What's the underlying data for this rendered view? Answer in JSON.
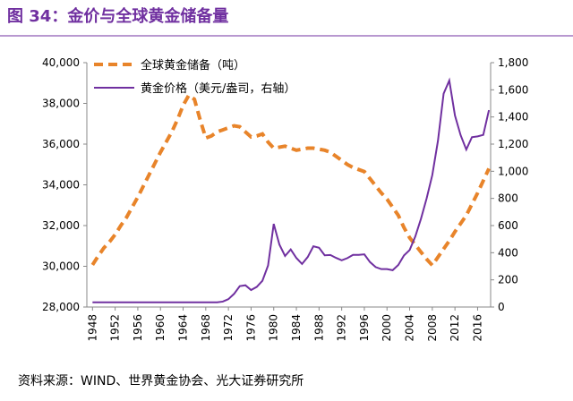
{
  "chart_data": {
    "type": "line",
    "title": "图 34：金价与全球黄金储备量",
    "source": "资料来源：WIND、世界黄金协会、光大证券研究所",
    "x": [
      1948,
      1949,
      1950,
      1951,
      1952,
      1953,
      1954,
      1955,
      1956,
      1957,
      1958,
      1959,
      1960,
      1961,
      1962,
      1963,
      1964,
      1965,
      1966,
      1967,
      1968,
      1969,
      1970,
      1971,
      1972,
      1973,
      1974,
      1975,
      1976,
      1977,
      1978,
      1979,
      1980,
      1981,
      1982,
      1983,
      1984,
      1985,
      1986,
      1987,
      1988,
      1989,
      1990,
      1991,
      1992,
      1993,
      1994,
      1995,
      1996,
      1997,
      1998,
      1999,
      2000,
      2001,
      2002,
      2003,
      2004,
      2005,
      2006,
      2007,
      2008,
      2009,
      2010,
      2011,
      2012,
      2013,
      2014,
      2015,
      2016,
      2017,
      2018
    ],
    "xlim": [
      1947,
      2018.3
    ],
    "xticks": [
      1948,
      1952,
      1956,
      1960,
      1964,
      1968,
      1972,
      1976,
      1980,
      1984,
      1988,
      1992,
      1996,
      2000,
      2004,
      2008,
      2012,
      2016
    ],
    "ylim": [
      28000,
      40000
    ],
    "yticks": [
      {
        "value": 28000,
        "label": "28,000"
      },
      {
        "value": 30000,
        "label": "30,000"
      },
      {
        "value": 32000,
        "label": "32,000"
      },
      {
        "value": 34000,
        "label": "34,000"
      },
      {
        "value": 36000,
        "label": "36,000"
      },
      {
        "value": 38000,
        "label": "38,000"
      },
      {
        "value": 40000,
        "label": "40,000"
      }
    ],
    "y2lim": [
      0,
      1800
    ],
    "y2ticks": [
      0,
      200,
      400,
      600,
      800,
      {
        "value": 1000,
        "label": "1,000"
      },
      {
        "value": 1200,
        "label": "1,200"
      },
      {
        "value": 1400,
        "label": "1,400"
      },
      {
        "value": 1600,
        "label": "1,600"
      },
      {
        "value": 1800,
        "label": "1,800"
      }
    ],
    "legend": "upper left",
    "series": [
      {
        "name": "全球黄金储备（吨）",
        "color": "#e8842a",
        "dashed": true,
        "values": [
          30070,
          30500,
          30900,
          31200,
          31560,
          32000,
          32400,
          32900,
          33400,
          33950,
          34500,
          35050,
          35600,
          36100,
          36600,
          37200,
          37900,
          38400,
          38200,
          37200,
          36300,
          36400,
          36600,
          36700,
          36800,
          36900,
          36850,
          36600,
          36350,
          36400,
          36500,
          36100,
          35800,
          35850,
          35900,
          35800,
          35700,
          35750,
          35800,
          35800,
          35750,
          35700,
          35600,
          35400,
          35200,
          35000,
          34850,
          34750,
          34650,
          34300,
          33950,
          33600,
          33300,
          32900,
          32500,
          31900,
          31400,
          31050,
          30700,
          30350,
          30050,
          30450,
          30850,
          31250,
          31700,
          32100,
          32500,
          33050,
          33600,
          34200,
          34800
        ]
      },
      {
        "name": "黄金价格（美元/盎司，右轴）",
        "color": "#7030a0",
        "axis": "y2",
        "values": [
          35,
          35,
          35,
          35,
          35,
          35,
          35,
          35,
          35,
          35,
          35,
          35,
          35,
          35,
          35,
          35,
          35,
          35,
          35,
          35,
          35,
          35,
          35,
          40,
          58,
          97,
          154,
          160,
          125,
          148,
          193,
          306,
          612,
          460,
          376,
          424,
          361,
          317,
          368,
          447,
          437,
          381,
          383,
          362,
          344,
          360,
          384,
          384,
          388,
          331,
          294,
          279,
          279,
          271,
          310,
          380,
          420,
          520,
          650,
          800,
          972,
          1225,
          1572,
          1669,
          1411,
          1266,
          1160,
          1251,
          1257,
          1268,
          1450
        ]
      }
    ]
  }
}
